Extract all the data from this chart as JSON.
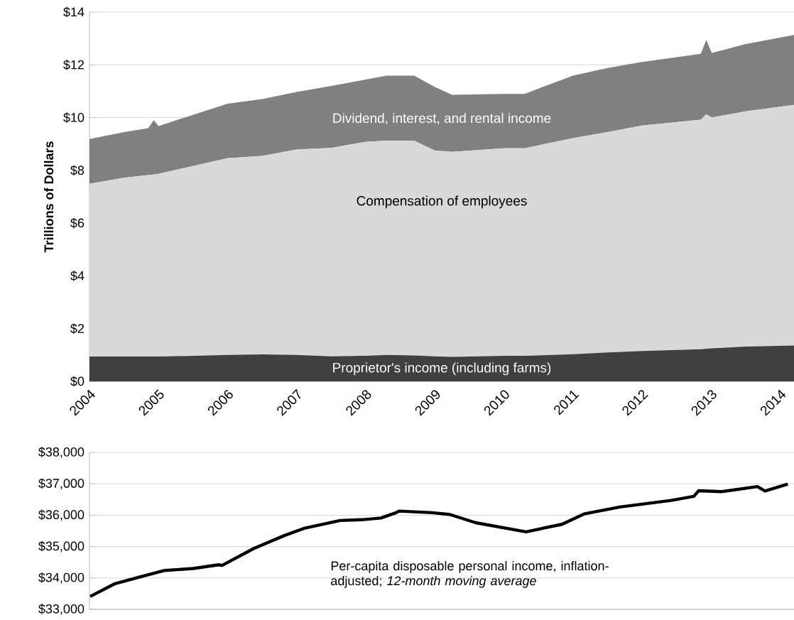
{
  "chart_data": [
    {
      "type": "area",
      "stacked": true,
      "ylabel": "Trillions of Dollars",
      "x": [
        2004.0,
        2004.5,
        2004.85,
        2004.93,
        2005.0,
        2006.0,
        2006.5,
        2007.0,
        2007.5,
        2008.0,
        2008.3,
        2008.7,
        2009.0,
        2009.25,
        2010.0,
        2010.3,
        2011.0,
        2011.5,
        2012.0,
        2012.85,
        2012.93,
        2013.01,
        2013.5,
        2014.2
      ],
      "series": [
        {
          "name": "Proprietor's income (including farms)",
          "color": "#404040",
          "values": [
            0.94,
            0.94,
            0.94,
            0.94,
            0.94,
            1.0,
            1.02,
            1.0,
            0.95,
            0.97,
            1.0,
            0.98,
            0.95,
            0.93,
            0.97,
            0.97,
            1.03,
            1.1,
            1.15,
            1.22,
            1.24,
            1.25,
            1.32,
            1.36
          ]
        },
        {
          "name": "Compensation of employees",
          "color": "#d9d9d9",
          "values": [
            6.55,
            6.78,
            6.88,
            6.9,
            6.93,
            7.46,
            7.53,
            7.79,
            7.9,
            8.11,
            8.13,
            8.15,
            7.8,
            7.77,
            7.87,
            7.87,
            8.19,
            8.35,
            8.55,
            8.7,
            8.89,
            8.75,
            8.92,
            9.12
          ]
        },
        {
          "name": "Dividend, interest, and rental income",
          "color": "#808080",
          "values": [
            1.7,
            1.73,
            1.78,
            2.06,
            1.81,
            2.07,
            2.15,
            2.18,
            2.35,
            2.36,
            2.46,
            2.46,
            2.41,
            2.16,
            2.06,
            2.06,
            2.37,
            2.43,
            2.41,
            2.5,
            2.81,
            2.45,
            2.55,
            2.65
          ]
        }
      ],
      "xlim": [
        2004,
        2014.2
      ],
      "xticks": [
        2004,
        2005,
        2006,
        2007,
        2008,
        2009,
        2010,
        2011,
        2012,
        2013,
        2014
      ],
      "ylim": [
        0,
        14
      ],
      "yticks": [
        {
          "value": 0,
          "label": "$0"
        },
        {
          "value": 2,
          "label": "$2"
        },
        {
          "value": 4,
          "label": "$4"
        },
        {
          "value": 6,
          "label": "$6"
        },
        {
          "value": 8,
          "label": "$8"
        },
        {
          "value": 10,
          "label": "$10"
        },
        {
          "value": 12,
          "label": "$12"
        },
        {
          "value": 14,
          "label": "$14"
        }
      ],
      "grid": "y"
    },
    {
      "type": "line",
      "x": [
        2004.01,
        2004.36,
        2004.76,
        2005.09,
        2005.5,
        2005.87,
        2005.92,
        2006.38,
        2006.82,
        2007.12,
        2007.63,
        2007.97,
        2008.22,
        2008.44,
        2008.48,
        2008.96,
        2009.22,
        2009.59,
        2010.32,
        2010.84,
        2011.16,
        2011.68,
        2012.42,
        2012.75,
        2012.82,
        2013.15,
        2013.67,
        2013.78,
        2014.11
      ],
      "series": [
        {
          "name": "Per-capita disposable personal income, inflation-adjusted;   *12-month moving average*",
          "color": "#000000",
          "values": [
            33410,
            33810,
            34050,
            34240,
            34300,
            34420,
            34400,
            34940,
            35350,
            35590,
            35830,
            35860,
            35910,
            36080,
            36130,
            36080,
            36020,
            35760,
            35470,
            35710,
            36040,
            36260,
            36470,
            36600,
            36780,
            36750,
            36910,
            36770,
            36990
          ]
        }
      ],
      "xlim": [
        2004,
        2014.2
      ],
      "ylim": [
        33000,
        38000
      ],
      "yticks": [
        {
          "value": 33000,
          "label": "$33,000"
        },
        {
          "value": 34000,
          "label": "$34,000"
        },
        {
          "value": 35000,
          "label": "$35,000"
        },
        {
          "value": 36000,
          "label": "$36,000"
        },
        {
          "value": 37000,
          "label": "$37,000"
        },
        {
          "value": 38000,
          "label": "$38,000"
        }
      ],
      "grid": "y",
      "tick_labels": "y"
    }
  ]
}
